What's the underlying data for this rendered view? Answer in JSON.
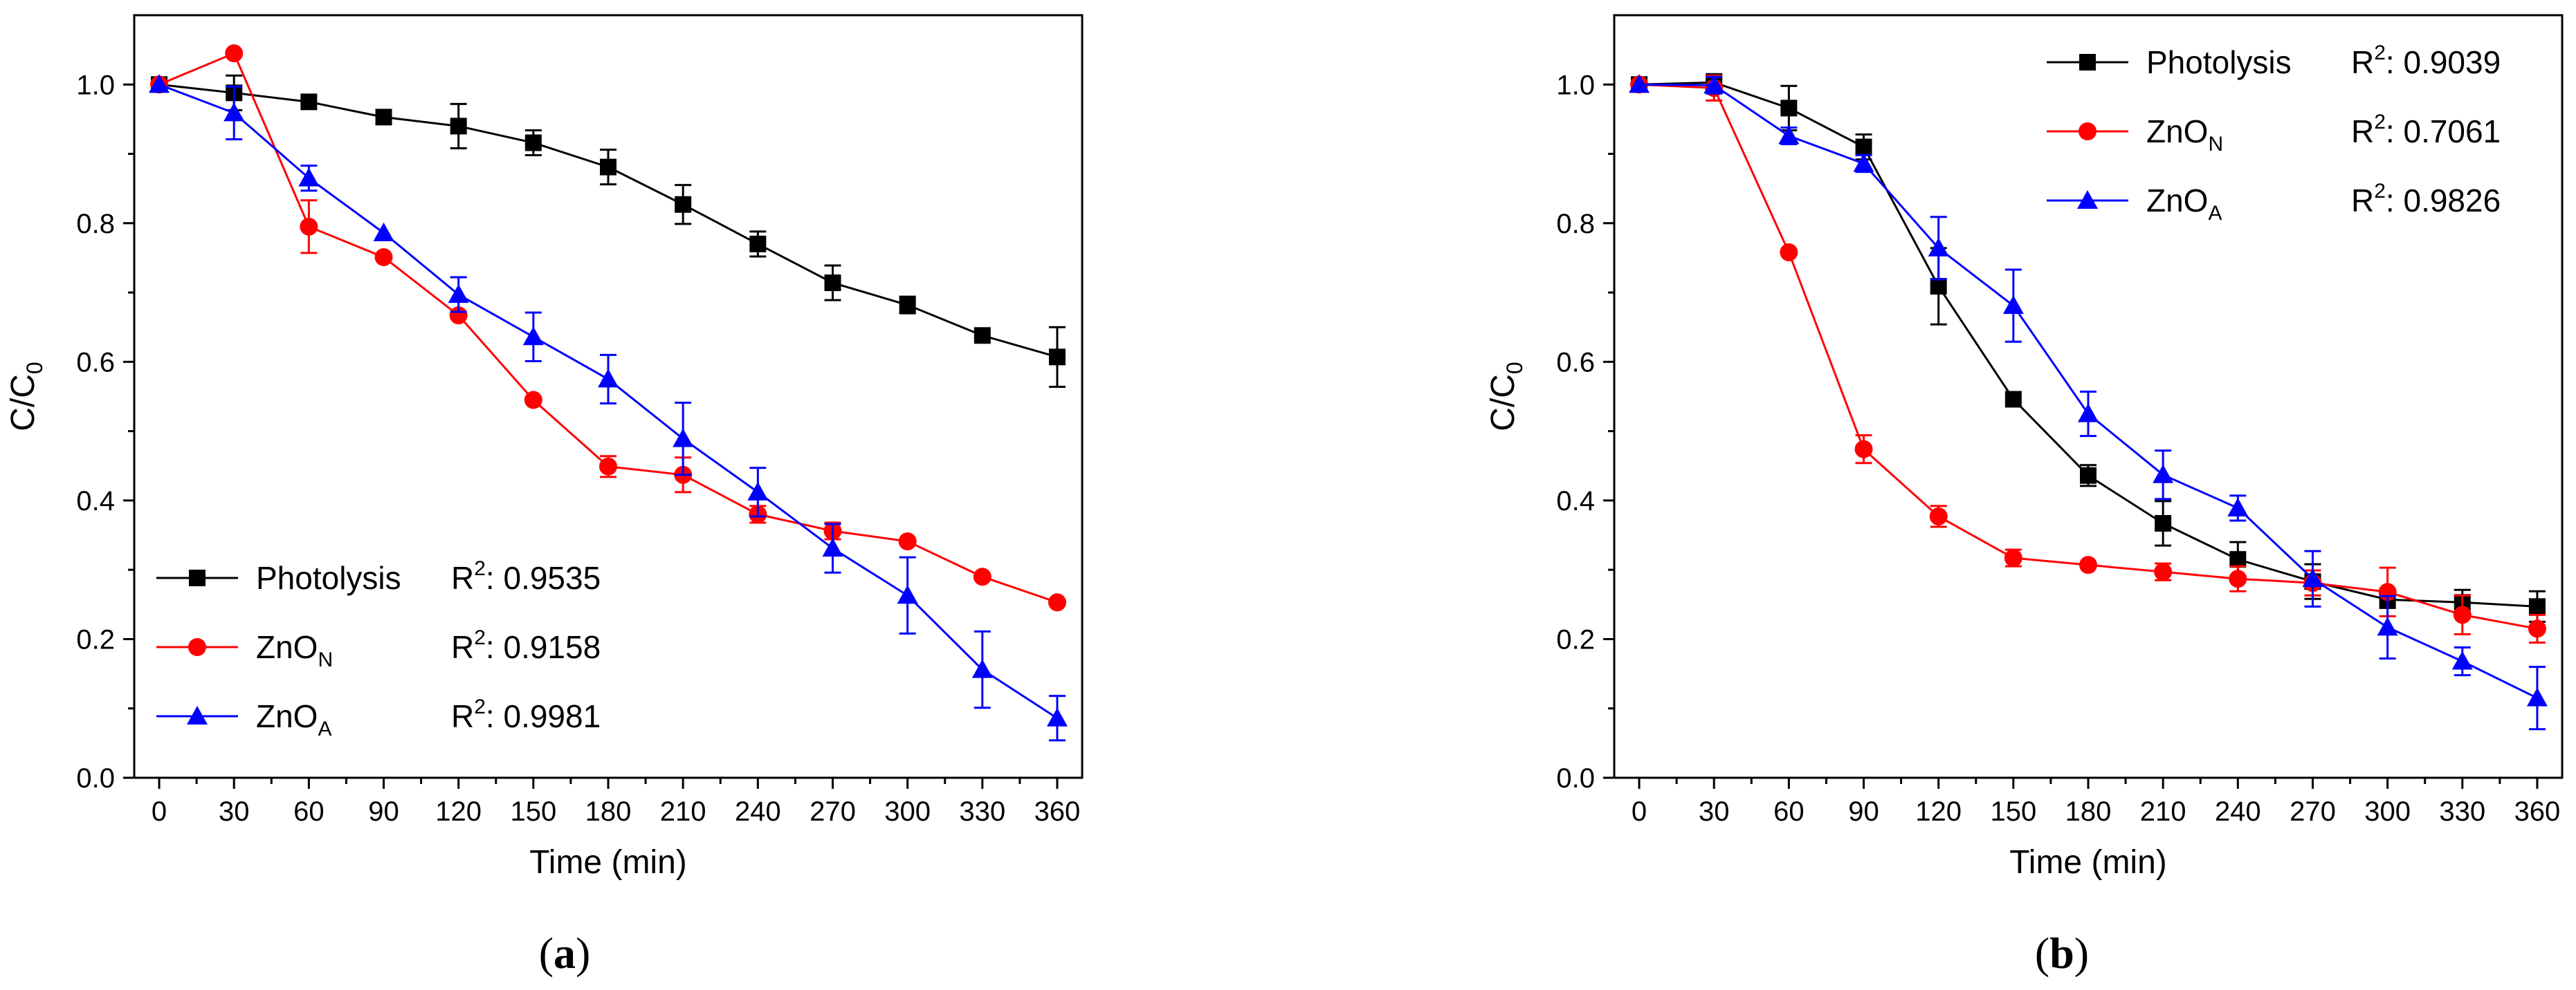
{
  "chart_data": [
    {
      "type": "line",
      "panel_label": "a",
      "xlabel": "Time (min)",
      "ylabel": "C/C",
      "ylabel_sub": "0",
      "xlim": [
        -10,
        370
      ],
      "ylim": [
        0,
        1.1
      ],
      "xticks": [
        0,
        30,
        60,
        90,
        120,
        150,
        180,
        210,
        240,
        270,
        300,
        330,
        360
      ],
      "yticks": [
        "0.0",
        "0.2",
        "0.4",
        "0.6",
        "0.8",
        "1.0"
      ],
      "legend_position": "bottom-left",
      "x": [
        0,
        30,
        60,
        90,
        120,
        150,
        180,
        210,
        240,
        270,
        300,
        330,
        360
      ],
      "series": [
        {
          "name": "Photolysis",
          "sub": "",
          "r2": "R",
          "r2_sup": "2",
          "r2_value": ": 0.9535",
          "color": "#000000",
          "marker": "square",
          "values": [
            1.0,
            0.988,
            0.975,
            0.953,
            0.94,
            0.916,
            0.881,
            0.827,
            0.77,
            0.714,
            0.682,
            0.638,
            0.607
          ],
          "errors": [
            0,
            0.025,
            0,
            0,
            0.032,
            0.018,
            0.025,
            0.028,
            0.018,
            0.025,
            0.012,
            0,
            0.043
          ]
        },
        {
          "name": "ZnO",
          "sub": "N",
          "r2": "R",
          "r2_sup": "2",
          "r2_value": ": 0.9158",
          "color": "#ff0000",
          "marker": "circle",
          "values": [
            1.0,
            1.045,
            0.795,
            0.751,
            0.667,
            0.545,
            0.449,
            0.437,
            0.38,
            0.356,
            0.341,
            0.29,
            0.253
          ],
          "errors": [
            0,
            0,
            0.038,
            0,
            0,
            0,
            0.015,
            0.025,
            0.012,
            0.012,
            0,
            0,
            0
          ]
        },
        {
          "name": "ZnO",
          "sub": "A",
          "r2": "R",
          "r2_sup": "2",
          "r2_value": ": 0.9981",
          "color": "#0000ff",
          "marker": "triangle",
          "values": [
            1.0,
            0.959,
            0.865,
            0.786,
            0.697,
            0.636,
            0.575,
            0.489,
            0.412,
            0.331,
            0.263,
            0.156,
            0.086
          ],
          "errors": [
            0,
            0.038,
            0.018,
            0,
            0.025,
            0.035,
            0.035,
            0.052,
            0.035,
            0.035,
            0.055,
            0.055,
            0.032
          ]
        }
      ]
    },
    {
      "type": "line",
      "panel_label": "b",
      "xlabel": "Time (min)",
      "ylabel": "C/C",
      "ylabel_sub": "0",
      "xlim": [
        -10,
        370
      ],
      "ylim": [
        0,
        1.1
      ],
      "xticks": [
        0,
        30,
        60,
        90,
        120,
        150,
        180,
        210,
        240,
        270,
        300,
        330,
        360
      ],
      "yticks": [
        "0.0",
        "0.2",
        "0.4",
        "0.6",
        "0.8",
        "1.0"
      ],
      "legend_position": "top-right",
      "x": [
        0,
        30,
        60,
        90,
        120,
        150,
        180,
        210,
        240,
        270,
        300,
        330,
        360
      ],
      "series": [
        {
          "name": "Photolysis",
          "sub": "",
          "r2": "R",
          "r2_sup": "2",
          "r2_value": ": 0.9039",
          "color": "#000000",
          "marker": "square",
          "values": [
            1.0,
            1.003,
            0.966,
            0.91,
            0.709,
            0.546,
            0.436,
            0.367,
            0.315,
            0.283,
            0.257,
            0.253,
            0.247
          ],
          "errors": [
            0,
            0.012,
            0.032,
            0.018,
            0.055,
            0,
            0.015,
            0.032,
            0.025,
            0.025,
            0.012,
            0.018,
            0.022
          ]
        },
        {
          "name": "ZnO",
          "sub": "N",
          "r2": "R",
          "r2_sup": "2",
          "r2_value": ": 0.7061",
          "color": "#ff0000",
          "marker": "circle",
          "values": [
            1.0,
            0.995,
            0.758,
            0.474,
            0.377,
            0.317,
            0.307,
            0.297,
            0.287,
            0.281,
            0.268,
            0.235,
            0.215
          ],
          "errors": [
            0,
            0.018,
            0,
            0.02,
            0.015,
            0.012,
            0,
            0.012,
            0.018,
            0.018,
            0.035,
            0.028,
            0.02
          ]
        },
        {
          "name": "ZnO",
          "sub": "A",
          "r2": "R",
          "r2_sup": "2",
          "r2_value": ": 0.9826",
          "color": "#0000ff",
          "marker": "triangle",
          "values": [
            1.0,
            0.999,
            0.926,
            0.886,
            0.764,
            0.681,
            0.525,
            0.437,
            0.389,
            0.287,
            0.217,
            0.168,
            0.115
          ],
          "errors": [
            0,
            0.012,
            0.012,
            0.012,
            0.045,
            0.052,
            0.032,
            0.035,
            0.018,
            0.04,
            0.045,
            0.02,
            0.045
          ]
        }
      ]
    }
  ]
}
